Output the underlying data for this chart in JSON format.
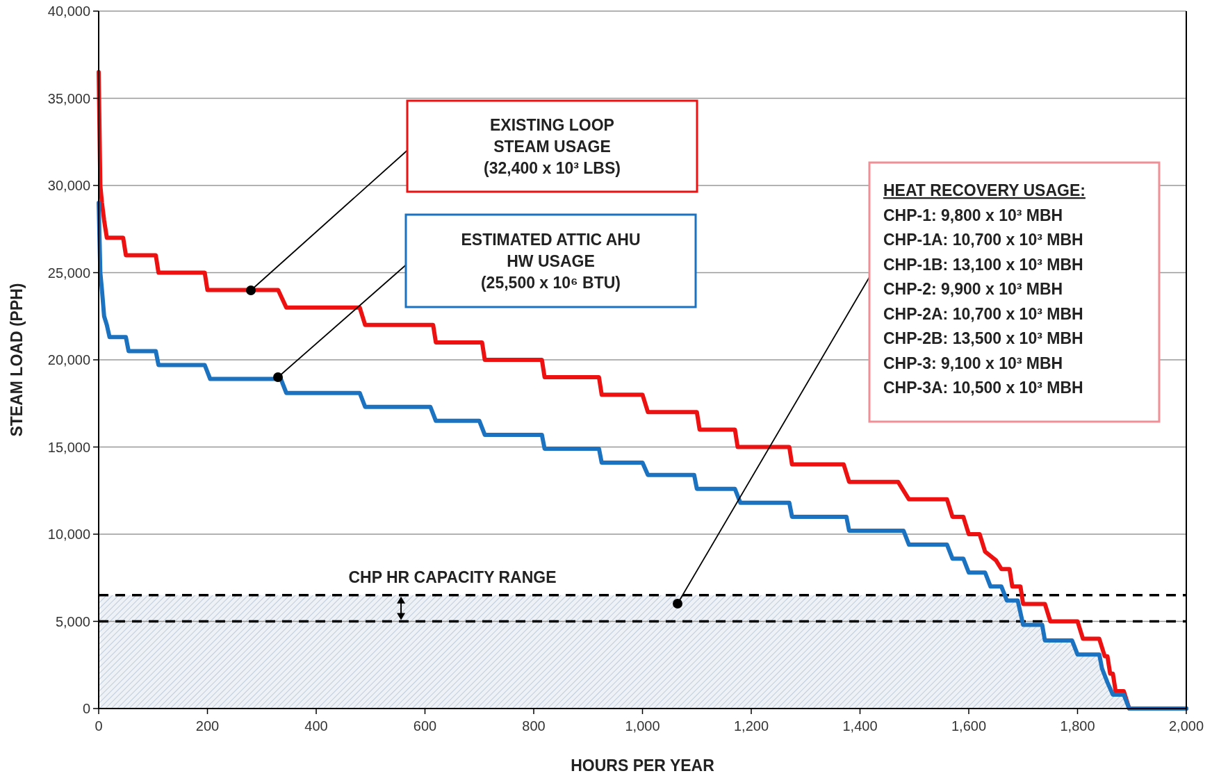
{
  "chart_data": {
    "type": "line",
    "xlabel": "HOURS PER YEAR",
    "ylabel": "STEAM LOAD (PPH)",
    "xlim": [
      0,
      2000
    ],
    "xticks": [
      0,
      {
        "value": 200,
        "label": "200"
      },
      {
        "value": 400,
        "label": "400"
      },
      {
        "value": 600,
        "label": "600"
      },
      {
        "value": 800,
        "label": "800"
      },
      {
        "value": 1000,
        "label": "1,000"
      },
      {
        "value": 1200,
        "label": "1,200"
      },
      {
        "value": 1400,
        "label": "1,400"
      },
      {
        "value": 1600,
        "label": "1,600"
      },
      {
        "value": 1800,
        "label": "1,800"
      },
      {
        "value": 2000,
        "label": "2,000"
      }
    ],
    "ylim": [
      0,
      40000
    ],
    "yticks": [
      0,
      {
        "value": 5000,
        "label": "5,000"
      },
      {
        "value": 10000,
        "label": "10,000"
      },
      {
        "value": 15000,
        "label": "15,000"
      },
      {
        "value": 20000,
        "label": "20,000"
      },
      {
        "value": 25000,
        "label": "25,000"
      },
      {
        "value": 30000,
        "label": "30,000"
      },
      {
        "value": 35000,
        "label": "35,000"
      },
      {
        "value": 40000,
        "label": "40,000"
      }
    ],
    "grid": "y",
    "marker": "none",
    "line_style": "solid",
    "series": [
      {
        "color": "#ee1111",
        "x": [
          0,
          3,
          6,
          10,
          15,
          45,
          50,
          105,
          110,
          195,
          200,
          330,
          345,
          480,
          490,
          615,
          620,
          705,
          710,
          815,
          820,
          920,
          925,
          1000,
          1010,
          1100,
          1105,
          1170,
          1175,
          1270,
          1275,
          1370,
          1380,
          1470,
          1490,
          1560,
          1570,
          1590,
          1600,
          1620,
          1630,
          1650,
          1660,
          1675,
          1680,
          1695,
          1700,
          1740,
          1750,
          1800,
          1810,
          1840,
          1850,
          1855,
          1860,
          1865,
          1870,
          1885,
          1895,
          2000
        ],
        "values": [
          36500,
          30000,
          29000,
          28000,
          27000,
          27000,
          26000,
          26000,
          25000,
          25000,
          24000,
          24000,
          23000,
          23000,
          22000,
          22000,
          21000,
          21000,
          20000,
          20000,
          19000,
          19000,
          18000,
          18000,
          17000,
          17000,
          16000,
          16000,
          15000,
          15000,
          14000,
          14000,
          13000,
          13000,
          12000,
          12000,
          11000,
          11000,
          10000,
          10000,
          9000,
          8500,
          8000,
          8000,
          7000,
          7000,
          6000,
          6000,
          5000,
          5000,
          4000,
          4000,
          3000,
          3000,
          2000,
          2000,
          1000,
          1000,
          0,
          0
        ]
      },
      {
        "color": "#1a72c0",
        "x": [
          0,
          3,
          6,
          10,
          15,
          20,
          50,
          55,
          105,
          110,
          195,
          205,
          335,
          345,
          480,
          490,
          610,
          620,
          700,
          710,
          815,
          820,
          920,
          925,
          1000,
          1010,
          1095,
          1100,
          1170,
          1180,
          1270,
          1275,
          1375,
          1380,
          1480,
          1490,
          1560,
          1570,
          1590,
          1600,
          1630,
          1640,
          1660,
          1670,
          1690,
          1700,
          1735,
          1740,
          1790,
          1800,
          1840,
          1845,
          1855,
          1865,
          1885,
          1895,
          2000
        ],
        "values": [
          29000,
          25000,
          24000,
          22500,
          22000,
          21300,
          21300,
          20500,
          20500,
          19700,
          19700,
          18900,
          18900,
          18100,
          18100,
          17300,
          17300,
          16500,
          16500,
          15700,
          15700,
          14900,
          14900,
          14100,
          14100,
          13400,
          13400,
          12600,
          12600,
          11800,
          11800,
          11000,
          11000,
          10200,
          10200,
          9400,
          9400,
          8600,
          8600,
          7800,
          7800,
          7000,
          7000,
          6200,
          6200,
          4800,
          4800,
          3900,
          3900,
          3100,
          3100,
          2300,
          1500,
          800,
          800,
          0,
          0
        ]
      }
    ],
    "ref_lines": [
      {
        "axis": "y",
        "value": 6500,
        "line_style": "dashed",
        "color": "#000000"
      },
      {
        "axis": "y",
        "value": 5000,
        "line_style": "dashed",
        "color": "#000000"
      }
    ],
    "bands": [
      {
        "axis": "y",
        "from": 0,
        "to": 6500,
        "label": "CHP HR CAPACITY RANGE",
        "color": "#9fb3c8"
      }
    ],
    "annotations": [
      "EXISTING LOOP\nSTEAM USAGE\n(32,400 x 10³ LBS)",
      "ESTIMATED ATTIC AHU\nHW USAGE\n(25,500 x 10⁶ BTU)",
      "HEAT RECOVERY USAGE:",
      "CHP-1: 9,800 x 10³ MBH",
      "CHP-1A: 10,700 x 10³ MBH",
      "CHP-1B: 13,100 x 10³ MBH",
      "CHP-2: 9,900 x 10³ MBH",
      "CHP-2A: 10,700 x 10³ MBH",
      "CHP-2B: 13,500 x 10³ MBH",
      "CHP-3: 9,100 x 10³ MBH",
      "CHP-3A: 10,500 x 10³ MBH"
    ]
  }
}
